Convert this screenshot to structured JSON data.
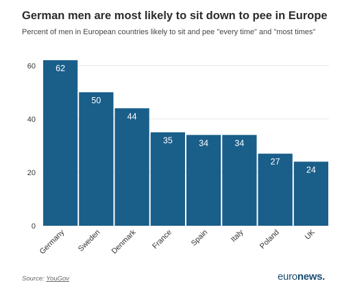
{
  "header": {
    "title": "German men are most likely to sit down to pee in Europe",
    "subtitle": "Percent of men in European countries likely to sit and pee \"every time\" and \"most times\""
  },
  "footer": {
    "source_prefix": "Source: ",
    "source_name": "YouGov",
    "brand_part1": "euro",
    "brand_part2": "news",
    "brand_dot": "."
  },
  "colors": {
    "bar": "#1a5e8a",
    "bar_label": "#ffffff",
    "grid": "#e6e6e6",
    "text": "#333333"
  },
  "chart_data": {
    "type": "bar",
    "categories": [
      "Germany",
      "Sweden",
      "Denmark",
      "France",
      "Spain",
      "Italy",
      "Poland",
      "UK"
    ],
    "values": [
      62,
      50,
      44,
      35,
      34,
      34,
      27,
      24
    ],
    "title": "German men are most likely to sit down to pee in Europe",
    "subtitle": "Percent of men in European countries likely to sit and pee \"every time\" and \"most times\"",
    "xlabel": "",
    "ylabel": "",
    "ylim": [
      0,
      62
    ],
    "yticks": [
      0,
      20,
      40,
      60
    ],
    "grid": true,
    "legend": "none"
  }
}
